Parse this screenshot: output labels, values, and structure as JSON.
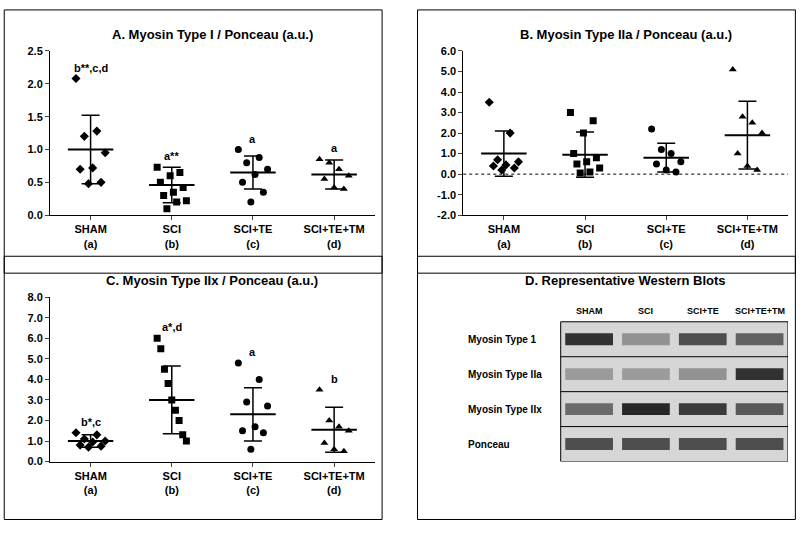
{
  "chart_data": [
    {
      "type": "scatter",
      "title": "A. Myosin Type I / Ponceau (a.u.)",
      "categories": [
        "SHAM",
        "SCI",
        "SCI+TE",
        "SCI+TE+TM"
      ],
      "group_labels": [
        "(a)",
        "(b)",
        "(c)",
        "(d)"
      ],
      "markers": [
        "diamond",
        "square",
        "circle",
        "triangle-up"
      ],
      "color": "#000000",
      "values": [
        [
          2.08,
          1.28,
          1.2,
          0.95,
          0.72,
          0.7,
          0.5,
          0.48
        ],
        [
          0.73,
          0.65,
          0.6,
          0.5,
          0.42,
          0.35,
          0.3,
          0.22,
          0.2,
          0.1
        ],
        [
          1.0,
          0.88,
          0.8,
          0.7,
          0.62,
          0.5,
          0.35,
          0.2
        ],
        [
          0.85,
          0.8,
          0.7,
          0.6,
          0.55,
          0.42,
          0.4
        ]
      ],
      "means": [
        1.0,
        0.46,
        0.65,
        0.62
      ],
      "sd": [
        0.52,
        0.27,
        0.25,
        0.22
      ],
      "significance": [
        "b**,c,d",
        "a**",
        "a",
        "a"
      ],
      "ylim": [
        0,
        2.5
      ],
      "yticks": [
        {
          "value": 0,
          "label": "0.0"
        },
        0.5,
        {
          "value": 1,
          "label": "1.0"
        },
        1.5,
        {
          "value": 2,
          "label": "2.0"
        },
        2.5
      ],
      "grid": false
    },
    {
      "type": "scatter",
      "title": "B. Myosin Type IIa / Ponceau (a.u.)",
      "categories": [
        "SHAM",
        "SCI",
        "SCI+TE",
        "SCI+TE+TM"
      ],
      "group_labels": [
        "(a)",
        "(b)",
        "(c)",
        "(d)"
      ],
      "markers": [
        "diamond",
        "square",
        "circle",
        "triangle-up"
      ],
      "color": "#000000",
      "values": [
        [
          3.5,
          2.0,
          0.7,
          0.6,
          0.45,
          0.4,
          0.3,
          0.2
        ],
        [
          3.0,
          2.6,
          2.0,
          1.0,
          0.8,
          0.6,
          0.5,
          0.3,
          0.1,
          0.05
        ],
        [
          2.2,
          1.2,
          1.0,
          0.6,
          0.5,
          0.2,
          0.1
        ],
        [
          5.1,
          2.8,
          2.5,
          2.0,
          1.0,
          0.4,
          0.2
        ]
      ],
      "means": [
        1.0,
        0.95,
        0.8,
        1.9
      ],
      "sd": [
        1.1,
        1.1,
        0.7,
        1.65
      ],
      "hline": 0,
      "ylim": [
        -2,
        6
      ],
      "yticks": [
        {
          "value": -2,
          "label": "-2.0"
        },
        {
          "value": -1,
          "label": "-1.0"
        },
        {
          "value": 0,
          "label": "0.0"
        },
        {
          "value": 1,
          "label": "1.0"
        },
        {
          "value": 2,
          "label": "2.0"
        },
        {
          "value": 3,
          "label": "3.0"
        },
        {
          "value": 4,
          "label": "4.0"
        },
        {
          "value": 5,
          "label": "5.0"
        },
        {
          "value": 6,
          "label": "6.0"
        }
      ],
      "grid": false
    },
    {
      "type": "scatter",
      "title": "C. Myosin Type IIx / Ponceau (a.u.)",
      "categories": [
        "SHAM",
        "SCI",
        "SCI+TE",
        "SCI+TE+TM"
      ],
      "group_labels": [
        "(a)",
        "(b)",
        "(c)",
        "(d)"
      ],
      "markers": [
        "diamond",
        "square",
        "circle",
        "triangle-up"
      ],
      "color": "#000000",
      "values": [
        [
          1.4,
          1.3,
          1.1,
          1.0,
          0.95,
          0.8,
          0.75,
          0.7
        ],
        [
          6.0,
          5.5,
          4.5,
          3.8,
          3.0,
          2.5,
          2.0,
          1.3,
          1.0
        ],
        [
          4.8,
          4.0,
          2.9,
          2.7,
          1.7,
          1.5,
          1.4,
          0.6
        ],
        [
          3.5,
          2.0,
          1.7,
          1.5,
          0.9,
          0.6,
          0.5
        ]
      ],
      "means": [
        1.0,
        3.0,
        2.3,
        1.55
      ],
      "sd": [
        0.3,
        1.65,
        1.3,
        1.1
      ],
      "significance": [
        "b*,c",
        "a*,d",
        "a",
        "b"
      ],
      "ylim": [
        0,
        8
      ],
      "yticks": [
        {
          "value": 0,
          "label": "0.0"
        },
        {
          "value": 1,
          "label": "1.0"
        },
        {
          "value": 2,
          "label": "2.0"
        },
        {
          "value": 3,
          "label": "3.0"
        },
        {
          "value": 4,
          "label": "4.0"
        },
        {
          "value": 5,
          "label": "5.0"
        },
        {
          "value": 6,
          "label": "6.0"
        },
        {
          "value": 7,
          "label": "7.0"
        },
        {
          "value": 8,
          "label": "8.0"
        }
      ],
      "grid": false
    }
  ],
  "blot": {
    "title": "D. Representative Western Blots",
    "lanes": [
      "SHAM",
      "SCI",
      "SCI+TE",
      "SCI+TE+TM"
    ],
    "rows": [
      {
        "name": "Myosin Type 1",
        "values": [
          0.85,
          0.35,
          0.7,
          0.6
        ]
      },
      {
        "name": "Myosin Type IIa",
        "values": [
          0.3,
          0.3,
          0.35,
          0.85
        ]
      },
      {
        "name": "Myosin Type IIx",
        "values": [
          0.55,
          0.9,
          0.8,
          0.65
        ]
      },
      {
        "name": "Ponceau",
        "values": [
          0.7,
          0.7,
          0.7,
          0.7
        ]
      }
    ]
  }
}
